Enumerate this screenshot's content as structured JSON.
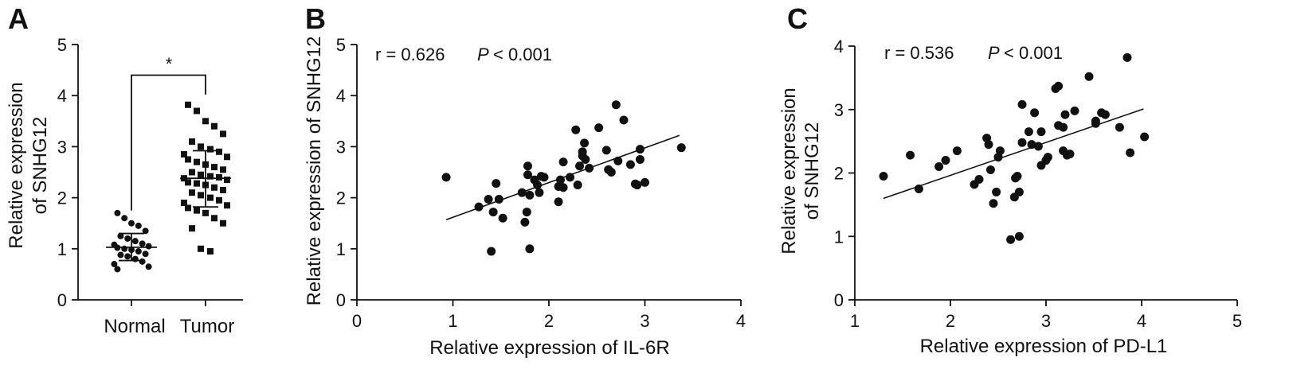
{
  "chart_data": [
    {
      "panel": "A",
      "type": "scatter",
      "categories": [
        "Normal",
        "Tumor"
      ],
      "ylabel": [
        "Relative expression",
        "of SNHG12"
      ],
      "ylim": [
        0,
        5
      ],
      "yticks": [
        "0",
        "1",
        "2",
        "3",
        "4",
        "5"
      ],
      "significance": "*",
      "groups": [
        {
          "name": "Normal",
          "marker": "circle",
          "mean": 1.03,
          "sd_upper": 1.3,
          "sd_lower": 0.77,
          "values": [
            1.7,
            1.6,
            1.5,
            1.45,
            1.35,
            1.25,
            1.2,
            1.15,
            1.1,
            1.08,
            1.05,
            1.02,
            1.0,
            0.98,
            0.95,
            0.9,
            0.88,
            0.85,
            0.8,
            0.75,
            0.7,
            0.65,
            0.6
          ]
        },
        {
          "name": "Tumor",
          "marker": "square",
          "mean": 2.38,
          "sd_upper": 2.92,
          "sd_lower": 1.82,
          "values": [
            3.82,
            3.7,
            3.5,
            3.4,
            3.25,
            3.1,
            3.0,
            2.95,
            2.9,
            2.85,
            2.8,
            2.75,
            2.7,
            2.65,
            2.6,
            2.55,
            2.5,
            2.45,
            2.42,
            2.4,
            2.38,
            2.35,
            2.3,
            2.28,
            2.25,
            2.2,
            2.15,
            2.1,
            2.05,
            2.0,
            1.95,
            1.9,
            1.85,
            1.8,
            1.75,
            1.7,
            1.6,
            1.5,
            1.4,
            1.0,
            0.95
          ]
        }
      ]
    },
    {
      "panel": "B",
      "type": "scatter",
      "xlabel": "Relative expression of IL-6R",
      "ylabel": "Relative expression of SNHG12",
      "xlim": [
        0,
        4
      ],
      "ylim": [
        0,
        5
      ],
      "xticks": [
        "0",
        "1",
        "2",
        "3",
        "4"
      ],
      "yticks": [
        "0",
        "1",
        "2",
        "3",
        "4",
        "5"
      ],
      "stat_r": "r = 0.626",
      "stat_p_symbol": "P",
      "stat_p_value": "< 0.001",
      "fit": {
        "x": [
          0.93,
          3.36
        ],
        "y": [
          1.57,
          3.22
        ]
      },
      "points": [
        {
          "x": 0.93,
          "y": 2.4
        },
        {
          "x": 1.27,
          "y": 1.82
        },
        {
          "x": 1.37,
          "y": 1.97
        },
        {
          "x": 1.4,
          "y": 0.95
        },
        {
          "x": 1.42,
          "y": 1.72
        },
        {
          "x": 1.45,
          "y": 2.28
        },
        {
          "x": 1.48,
          "y": 1.97
        },
        {
          "x": 1.52,
          "y": 1.6
        },
        {
          "x": 1.72,
          "y": 2.1
        },
        {
          "x": 1.75,
          "y": 1.52
        },
        {
          "x": 1.77,
          "y": 1.72
        },
        {
          "x": 1.78,
          "y": 2.45
        },
        {
          "x": 1.78,
          "y": 2.62
        },
        {
          "x": 1.8,
          "y": 2.05
        },
        {
          "x": 1.8,
          "y": 1.0
        },
        {
          "x": 1.85,
          "y": 2.35
        },
        {
          "x": 1.88,
          "y": 2.25
        },
        {
          "x": 1.9,
          "y": 2.1
        },
        {
          "x": 1.92,
          "y": 2.42
        },
        {
          "x": 1.95,
          "y": 2.4
        },
        {
          "x": 2.1,
          "y": 1.92
        },
        {
          "x": 2.1,
          "y": 2.22
        },
        {
          "x": 2.12,
          "y": 2.35
        },
        {
          "x": 2.15,
          "y": 2.2
        },
        {
          "x": 2.15,
          "y": 2.7
        },
        {
          "x": 2.22,
          "y": 2.4
        },
        {
          "x": 2.28,
          "y": 3.33
        },
        {
          "x": 2.3,
          "y": 2.25
        },
        {
          "x": 2.32,
          "y": 2.62
        },
        {
          "x": 2.35,
          "y": 2.9
        },
        {
          "x": 2.35,
          "y": 2.82
        },
        {
          "x": 2.37,
          "y": 3.07
        },
        {
          "x": 2.38,
          "y": 2.75
        },
        {
          "x": 2.42,
          "y": 2.58
        },
        {
          "x": 2.52,
          "y": 3.37
        },
        {
          "x": 2.6,
          "y": 2.93
        },
        {
          "x": 2.62,
          "y": 2.55
        },
        {
          "x": 2.65,
          "y": 2.5
        },
        {
          "x": 2.7,
          "y": 3.82
        },
        {
          "x": 2.72,
          "y": 2.72
        },
        {
          "x": 2.78,
          "y": 3.52
        },
        {
          "x": 2.85,
          "y": 2.65
        },
        {
          "x": 2.9,
          "y": 2.27
        },
        {
          "x": 2.92,
          "y": 2.25
        },
        {
          "x": 2.95,
          "y": 2.95
        },
        {
          "x": 2.95,
          "y": 2.75
        },
        {
          "x": 3.0,
          "y": 2.3
        },
        {
          "x": 3.38,
          "y": 2.98
        }
      ]
    },
    {
      "panel": "C",
      "type": "scatter",
      "xlabel": "Relative expression of PD-L1",
      "ylabel": [
        "Relative expression",
        "of SNHG12"
      ],
      "xlim": [
        1,
        5
      ],
      "ylim": [
        0,
        4
      ],
      "xticks": [
        "1",
        "2",
        "3",
        "4",
        "5"
      ],
      "yticks": [
        "0",
        "1",
        "2",
        "3",
        "4"
      ],
      "stat_r": "r = 0.536",
      "stat_p_symbol": "P",
      "stat_p_value": "< 0.001",
      "fit": {
        "x": [
          1.3,
          4.02
        ],
        "y": [
          1.6,
          3.01
        ]
      },
      "points": [
        {
          "x": 1.3,
          "y": 1.95
        },
        {
          "x": 1.58,
          "y": 2.28
        },
        {
          "x": 1.67,
          "y": 1.75
        },
        {
          "x": 1.88,
          "y": 2.1
        },
        {
          "x": 1.95,
          "y": 2.2
        },
        {
          "x": 2.07,
          "y": 2.35
        },
        {
          "x": 2.25,
          "y": 1.82
        },
        {
          "x": 2.3,
          "y": 1.9
        },
        {
          "x": 2.38,
          "y": 2.55
        },
        {
          "x": 2.4,
          "y": 2.45
        },
        {
          "x": 2.42,
          "y": 2.05
        },
        {
          "x": 2.45,
          "y": 1.52
        },
        {
          "x": 2.48,
          "y": 1.7
        },
        {
          "x": 2.5,
          "y": 2.25
        },
        {
          "x": 2.52,
          "y": 2.35
        },
        {
          "x": 2.63,
          "y": 0.95
        },
        {
          "x": 2.67,
          "y": 1.62
        },
        {
          "x": 2.68,
          "y": 1.92
        },
        {
          "x": 2.7,
          "y": 1.95
        },
        {
          "x": 2.72,
          "y": 1.0
        },
        {
          "x": 2.72,
          "y": 1.7
        },
        {
          "x": 2.75,
          "y": 2.48
        },
        {
          "x": 2.75,
          "y": 3.08
        },
        {
          "x": 2.82,
          "y": 2.65
        },
        {
          "x": 2.85,
          "y": 2.45
        },
        {
          "x": 2.88,
          "y": 2.95
        },
        {
          "x": 2.92,
          "y": 2.42
        },
        {
          "x": 2.95,
          "y": 2.65
        },
        {
          "x": 2.95,
          "y": 2.12
        },
        {
          "x": 3.0,
          "y": 2.2
        },
        {
          "x": 3.02,
          "y": 2.25
        },
        {
          "x": 3.1,
          "y": 3.33
        },
        {
          "x": 3.13,
          "y": 3.37
        },
        {
          "x": 3.13,
          "y": 2.75
        },
        {
          "x": 3.18,
          "y": 2.72
        },
        {
          "x": 3.18,
          "y": 2.35
        },
        {
          "x": 3.2,
          "y": 2.92
        },
        {
          "x": 3.22,
          "y": 2.28
        },
        {
          "x": 3.25,
          "y": 2.3
        },
        {
          "x": 3.3,
          "y": 2.98
        },
        {
          "x": 3.45,
          "y": 3.52
        },
        {
          "x": 3.52,
          "y": 2.82
        },
        {
          "x": 3.52,
          "y": 2.78
        },
        {
          "x": 3.58,
          "y": 2.95
        },
        {
          "x": 3.62,
          "y": 2.92
        },
        {
          "x": 3.77,
          "y": 2.72
        },
        {
          "x": 3.85,
          "y": 3.82
        },
        {
          "x": 3.88,
          "y": 2.32
        },
        {
          "x": 4.03,
          "y": 2.57
        }
      ]
    }
  ]
}
